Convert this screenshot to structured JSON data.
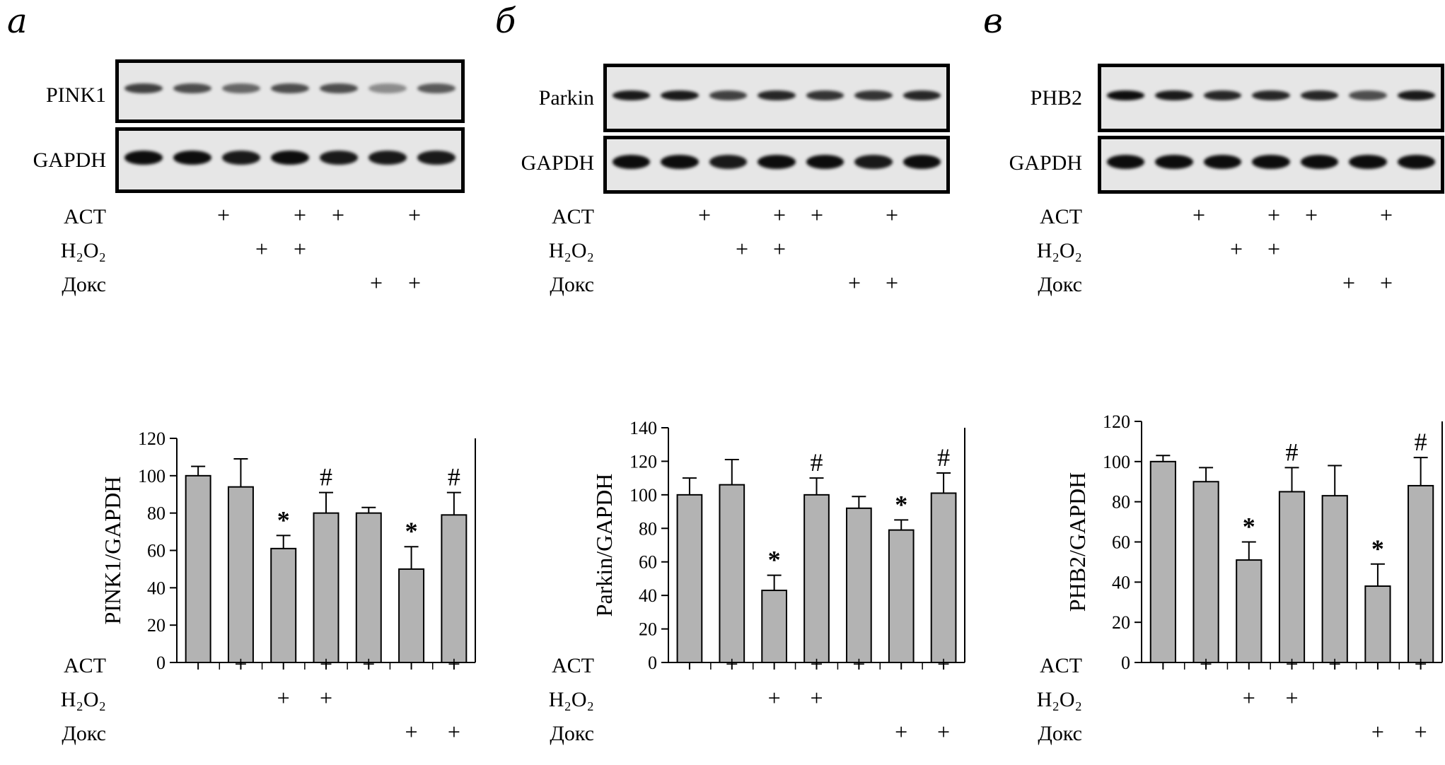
{
  "treatments": {
    "labels": [
      "ACT",
      "H₂O₂",
      "Докс"
    ],
    "matrix": [
      [
        false,
        true,
        false,
        true,
        true,
        false,
        true
      ],
      [
        false,
        false,
        true,
        true,
        false,
        false,
        false
      ],
      [
        false,
        false,
        false,
        false,
        false,
        true,
        true
      ]
    ],
    "plus": "+"
  },
  "panels": [
    {
      "letter": "а",
      "blot": {
        "target": "PINK1",
        "loading": "GAPDH",
        "target_intensity": [
          0.75,
          0.7,
          0.6,
          0.7,
          0.7,
          0.45,
          0.65
        ],
        "loading_intensity": [
          0.95,
          0.95,
          0.9,
          0.95,
          0.9,
          0.9,
          0.9
        ]
      },
      "chart_data": {
        "type": "bar",
        "categories": [
          "1",
          "2",
          "3",
          "4",
          "5",
          "6",
          "7"
        ],
        "values": [
          100,
          94,
          61,
          80,
          80,
          50,
          79
        ],
        "errors": [
          5,
          15,
          7,
          11,
          3,
          12,
          12
        ],
        "annotations": [
          "",
          "",
          "*",
          "#",
          "",
          "*",
          "#"
        ],
        "ylabel": "PINK1/GAPDH",
        "ylim": [
          0,
          120
        ],
        "yticks": [
          0,
          20,
          40,
          60,
          80,
          100,
          120
        ],
        "bar_color": "#b3b3b3",
        "grid": false
      }
    },
    {
      "letter": "б",
      "blot": {
        "target": "Parkin",
        "loading": "GAPDH",
        "target_intensity": [
          0.9,
          0.9,
          0.75,
          0.85,
          0.8,
          0.8,
          0.85
        ],
        "loading_intensity": [
          0.95,
          0.95,
          0.9,
          0.95,
          0.95,
          0.9,
          0.95
        ]
      },
      "chart_data": {
        "type": "bar",
        "categories": [
          "1",
          "2",
          "3",
          "4",
          "5",
          "6",
          "7"
        ],
        "values": [
          100,
          106,
          43,
          100,
          92,
          79,
          101
        ],
        "errors": [
          10,
          15,
          9,
          10,
          7,
          6,
          12
        ],
        "annotations": [
          "",
          "",
          "*",
          "#",
          "",
          "*",
          "#"
        ],
        "ylabel": "Parkin/GAPDH",
        "ylim": [
          0,
          140
        ],
        "yticks": [
          0,
          20,
          40,
          60,
          80,
          100,
          120,
          140
        ],
        "bar_color": "#b3b3b3",
        "grid": false
      }
    },
    {
      "letter": "в",
      "blot": {
        "target": "PHB2",
        "loading": "GAPDH",
        "target_intensity": [
          0.95,
          0.9,
          0.85,
          0.85,
          0.85,
          0.7,
          0.9
        ],
        "loading_intensity": [
          0.95,
          0.95,
          0.95,
          0.95,
          0.95,
          0.95,
          0.95
        ]
      },
      "chart_data": {
        "type": "bar",
        "categories": [
          "1",
          "2",
          "3",
          "4",
          "5",
          "6",
          "7"
        ],
        "values": [
          100,
          90,
          51,
          85,
          83,
          38,
          88
        ],
        "errors": [
          3,
          7,
          9,
          12,
          15,
          11,
          14
        ],
        "annotations": [
          "",
          "",
          "*",
          "#",
          "",
          "*",
          "#"
        ],
        "ylabel": "PHB2/GAPDH",
        "ylim": [
          0,
          120
        ],
        "yticks": [
          0,
          20,
          40,
          60,
          80,
          100,
          120
        ],
        "bar_color": "#b3b3b3",
        "grid": false
      }
    }
  ]
}
